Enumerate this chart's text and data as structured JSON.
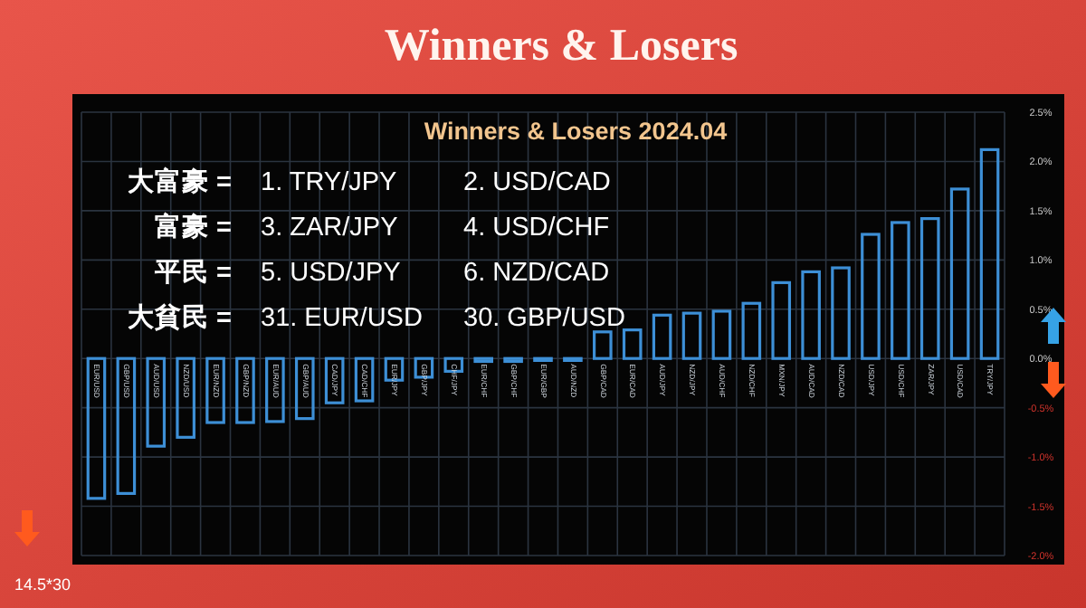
{
  "chart_data": {
    "type": "bar",
    "title": "Winners & Losers",
    "subtitle": "Winners & Losers  2024.04",
    "categories": [
      "EUR/USD",
      "GBP/USD",
      "AUD/USD",
      "NZD/USD",
      "EUR/NZD",
      "GBP/NZD",
      "EUR/AUD",
      "GBP/AUD",
      "CAD/JPY",
      "CAD/CHF",
      "EUR/JPY",
      "GBP/JPY",
      "CHF/JPY",
      "EUR/CHF",
      "GBP/CHF",
      "EUR/GBP",
      "AUD/NZD",
      "GBP/CAD",
      "EUR/CAD",
      "AUD/JPY",
      "NZD/JPY",
      "AUD/CHF",
      "NZD/CHF",
      "MXN/JPY",
      "AUD/CAD",
      "NZD/CAD",
      "USD/JPY",
      "USD/CHF",
      "ZAR/JPY",
      "USD/CAD",
      "TRY/JPY"
    ],
    "values": [
      -1.42,
      -1.37,
      -0.89,
      -0.8,
      -0.65,
      -0.65,
      -0.64,
      -0.61,
      -0.45,
      -0.43,
      -0.22,
      -0.19,
      -0.13,
      -0.03,
      -0.03,
      -0.02,
      -0.02,
      0.27,
      0.29,
      0.44,
      0.46,
      0.48,
      0.56,
      0.77,
      0.88,
      0.92,
      1.26,
      1.38,
      1.42,
      1.72,
      2.12
    ],
    "color": "#3d8fd6",
    "ylim": [
      -2.0,
      2.5
    ],
    "yticks": [
      {
        "value": 2.5,
        "label": "2.5%"
      },
      {
        "value": 2.0,
        "label": "2.0%"
      },
      {
        "value": 1.5,
        "label": "1.5%"
      },
      {
        "value": 1.0,
        "label": "1.0%"
      },
      {
        "value": 0.5,
        "label": "0.5%"
      },
      {
        "value": 0.0,
        "label": "0.0%"
      },
      {
        "value": -0.5,
        "label": "-0.5%"
      },
      {
        "value": -1.0,
        "label": "-1.0%"
      },
      {
        "value": -1.5,
        "label": "-1.5%"
      },
      {
        "value": -2.0,
        "label": "-2.0%"
      }
    ],
    "grid": true,
    "annotations": [
      "大富豪 =",
      "1. TRY/JPY",
      "2. USD/CAD",
      "富豪 =",
      "3. ZAR/JPY",
      "4. USD/CHF",
      "平民 =",
      "5. USD/JPY",
      "6. NZD/CAD",
      "大貧民 =",
      "31. EUR/USD",
      "30. GBP/USD",
      "14.5*30"
    ]
  }
}
